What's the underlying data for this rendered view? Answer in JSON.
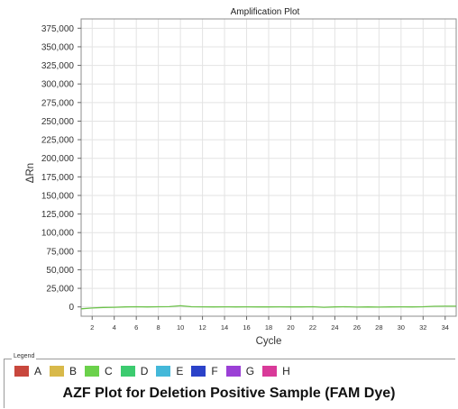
{
  "chart_data": {
    "type": "line",
    "title": "Amplification Plot",
    "xlabel": "Cycle",
    "ylabel": "ΔRn",
    "xlim": [
      1,
      35
    ],
    "ylim": [
      -12500,
      387500
    ],
    "x_ticks": [
      2,
      4,
      6,
      8,
      10,
      12,
      14,
      16,
      18,
      20,
      22,
      24,
      26,
      28,
      30,
      32,
      34
    ],
    "y_ticks": [
      0,
      25000,
      50000,
      75000,
      100000,
      125000,
      150000,
      175000,
      200000,
      225000,
      250000,
      275000,
      300000,
      325000,
      350000,
      375000
    ],
    "y_tick_labels": [
      "0",
      "25,000",
      "50,000",
      "75,000",
      "100,000",
      "125,000",
      "150,000",
      "175,000",
      "200,000",
      "225,000",
      "250,000",
      "275,000",
      "300,000",
      "325,000",
      "350,000",
      "375,000"
    ],
    "grid": true,
    "series": [
      {
        "color": "#6cc24a",
        "x": [
          1,
          2,
          3,
          4,
          5,
          6,
          7,
          8,
          9,
          10,
          11,
          12,
          13,
          14,
          15,
          16,
          17,
          18,
          19,
          20,
          21,
          22,
          23,
          24,
          25,
          26,
          27,
          28,
          29,
          30,
          31,
          32,
          33,
          34,
          35
        ],
        "y": [
          -2500,
          -1500,
          -800,
          -500,
          0,
          200,
          0,
          200,
          300,
          1500,
          200,
          100,
          0,
          100,
          0,
          100,
          0,
          0,
          100,
          0,
          0,
          200,
          -500,
          0,
          200,
          -300,
          0,
          -200,
          0,
          100,
          0,
          200,
          800,
          1000,
          1000
        ]
      }
    ]
  },
  "legend": {
    "title": "Legend",
    "items": [
      {
        "label": "A",
        "color": "#c8473d"
      },
      {
        "label": "B",
        "color": "#d8b94a"
      },
      {
        "label": "C",
        "color": "#6bd14b"
      },
      {
        "label": "D",
        "color": "#3ccb6f"
      },
      {
        "label": "E",
        "color": "#44b8d9"
      },
      {
        "label": "F",
        "color": "#2b42c9"
      },
      {
        "label": "G",
        "color": "#9b40d6"
      },
      {
        "label": "H",
        "color": "#d93a99"
      }
    ]
  },
  "caption": "AZF Plot for Deletion Positive Sample (FAM Dye)"
}
